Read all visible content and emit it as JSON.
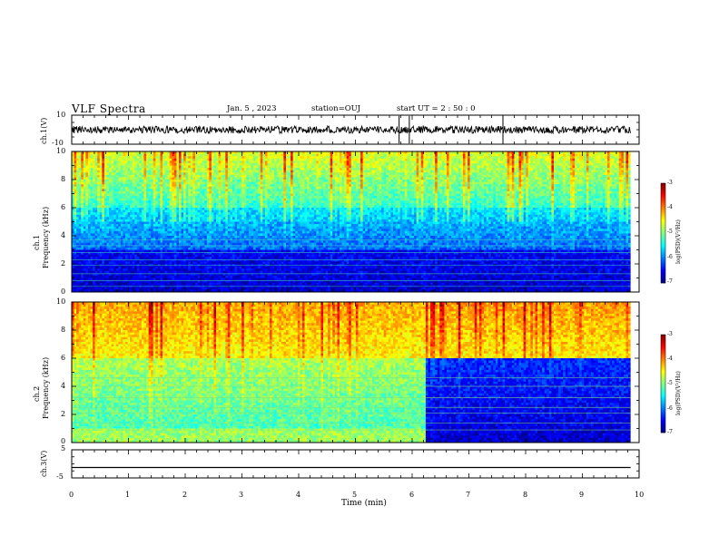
{
  "header": {
    "title": "VLF Spectra",
    "date": "Jan. 5 , 2023",
    "station": "station=OUJ",
    "start": "start UT =  2 : 50 : 0"
  },
  "chart_data": [
    {
      "type": "line",
      "panel": "ch1-waveform",
      "ylabel": "ch.1(V)",
      "ylim": [
        -10,
        10
      ],
      "yticks": [
        "10",
        "-10"
      ],
      "baseline": 0,
      "noise_amplitude": 2.5,
      "spikes_min": [
        5.77,
        5.95,
        7.6
      ],
      "color": "#000000"
    },
    {
      "type": "heatmap",
      "panel": "ch1-spectrogram",
      "ylabel_line1": "ch.1",
      "ylabel_line2": "Frequency (kHz)",
      "ylim": [
        0,
        10
      ],
      "yticks": [
        "10",
        "8",
        "6",
        "4",
        "2",
        "0"
      ],
      "color_range": [
        -7,
        -3
      ],
      "colorbar_ticks": [
        "-3",
        "-4",
        "-5",
        "-6",
        "-7"
      ],
      "colorbar_label": "log(PSD)(V²/Hz)"
    },
    {
      "type": "heatmap",
      "panel": "ch2-spectrogram",
      "ylabel_line1": "ch.2",
      "ylabel_line2": "Frequency (kHz)",
      "ylim": [
        0,
        10
      ],
      "yticks": [
        "10",
        "8",
        "6",
        "4",
        "2",
        "0"
      ],
      "color_range": [
        -7,
        -3
      ],
      "colorbar_ticks": [
        "-3",
        "-4",
        "-5",
        "-6",
        "-7"
      ],
      "colorbar_label": "log(PSD)(V²/Hz)",
      "regime_change_min": 6.25
    },
    {
      "type": "line",
      "panel": "ch3-waveform",
      "ylabel": "ch.3(V)",
      "ylim": [
        -5,
        5
      ],
      "yticks": [
        "5",
        "-5"
      ],
      "constant_value": -1.3,
      "color": "#000000"
    }
  ],
  "xaxis": {
    "label": "Time (min)",
    "xlim": [
      0,
      10
    ],
    "ticks": [
      "0",
      "1",
      "2",
      "3",
      "4",
      "5",
      "6",
      "7",
      "8",
      "9",
      "10"
    ],
    "data_end_min": 9.85
  }
}
